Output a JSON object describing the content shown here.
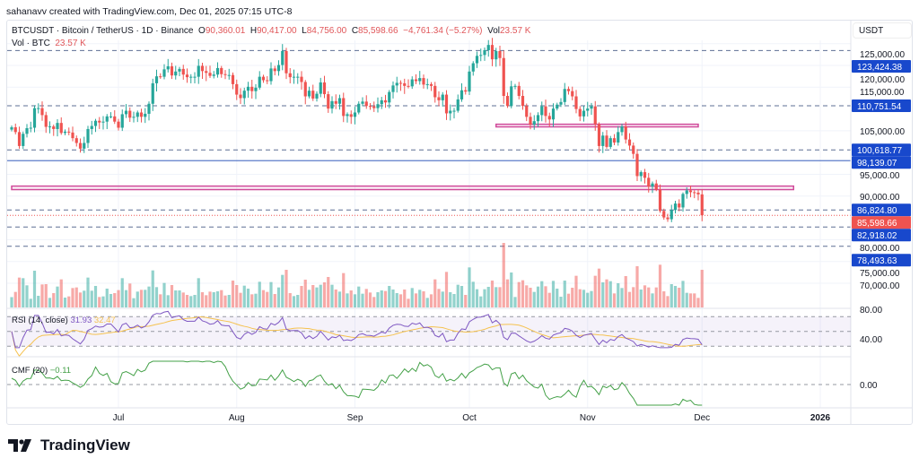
{
  "credit": "sahanavv created with TradingView.com, Dec 01, 2025 07:15 UTC-8",
  "header": {
    "symbol": "BTCUSDT · Bitcoin / TetherUS · 1D · Binance",
    "o_label": "O",
    "o": "90,360.01",
    "h_label": "H",
    "h": "90,417.00",
    "l_label": "L",
    "l": "84,756.00",
    "c_label": "C",
    "c": "85,598.66",
    "change": "−4,761.34 (−5.27%)",
    "vol_label": "Vol",
    "vol": "23.57 K",
    "vol_series_label": "Vol · BTC",
    "vol_series_value": "23.57 K"
  },
  "price_unit": "USDT",
  "logo_text": "TradingView",
  "colors": {
    "up": "#26a69a",
    "down": "#ef5350",
    "level": "#1848cc",
    "rsi": "#7e57c2",
    "rsi_ma": "#f5c24f",
    "cmf": "#43a047",
    "zone": "#d04a9a"
  },
  "chart_data": {
    "type": "candlestick",
    "start_date": "2025-06-03",
    "close_k": [
      105.8,
      104.7,
      101.5,
      104.3,
      105.6,
      105.7,
      110.2,
      110.2,
      108.6,
      105.9,
      106.0,
      105.4,
      106.8,
      104.5,
      104.8,
      104.6,
      103.3,
      102.2,
      100.9,
      102.2,
      105.4,
      106.1,
      107.3,
      106.9,
      107.1,
      108.3,
      108.3,
      107.1,
      105.7,
      108.8,
      109.6,
      108.0,
      108.2,
      109.2,
      108.2,
      108.9,
      111.2,
      115.9,
      117.5,
      117.4,
      119.1,
      119.8,
      117.7,
      118.6,
      119.2,
      117.9,
      117.3,
      117.4,
      117.4,
      119.9,
      118.7,
      118.3,
      117.6,
      117.9,
      119.4,
      118.0,
      117.8,
      117.8,
      115.7,
      113.3,
      112.5,
      114.2,
      115.1,
      114.1,
      114.9,
      117.4,
      116.6,
      116.4,
      119.3,
      118.7,
      120.1,
      123.3,
      118.2,
      117.3,
      117.4,
      117.4,
      116.2,
      112.9,
      114.2,
      112.4,
      113.5,
      116.1,
      113.4,
      110.1,
      111.8,
      111.2,
      112.5,
      108.4,
      108.8,
      108.2,
      109.2,
      111.2,
      111.7,
      110.7,
      110.6,
      110.2,
      111.1,
      112.0,
      111.5,
      113.9,
      115.4,
      116.0,
      115.9,
      115.3,
      115.2,
      116.8,
      116.4,
      117.1,
      115.6,
      115.7,
      115.3,
      112.7,
      112.0,
      113.3,
      109.0,
      109.6,
      109.6,
      112.2,
      114.3,
      114.0,
      118.6,
      120.5,
      122.2,
      122.4,
      123.5,
      124.7,
      121.4,
      123.3,
      121.7,
      113.0,
      110.7,
      115.2,
      115.3,
      113.0,
      110.7,
      108.2,
      106.4,
      107.2,
      108.6,
      110.6,
      108.4,
      107.6,
      110.1,
      111.0,
      111.6,
      114.6,
      114.1,
      112.9,
      110.0,
      108.3,
      109.6,
      110.1,
      110.6,
      106.5,
      101.5,
      103.9,
      101.3,
      103.3,
      102.3,
      104.7,
      106.0,
      103.0,
      101.6,
      99.7,
      94.6,
      95.5,
      94.2,
      92.2,
      92.9,
      91.5,
      86.6,
      85.1,
      84.7,
      86.8,
      88.3,
      87.4,
      90.5,
      91.3,
      90.9,
      90.8,
      90.4,
      85.6
    ],
    "price_ticks": [
      "125,000.00",
      "120,000.00",
      "115,000.00",
      "105,000.00",
      "95,000.00",
      "90,000.00",
      "80,000.00",
      "75,000.00",
      "70,000.00"
    ],
    "price_tick_values": [
      125000,
      120000,
      115000,
      105000,
      95000,
      90000,
      80000,
      75000,
      70000
    ],
    "levels": [
      {
        "label": "123,424.38",
        "value": 123424.38,
        "style": "dashed"
      },
      {
        "label": "110,751.54",
        "value": 110751.54,
        "style": "dashed"
      },
      {
        "label": "100,618.77",
        "value": 100618.77,
        "style": "dashed"
      },
      {
        "label": "98,139.07",
        "value": 98139.07,
        "style": "solid"
      },
      {
        "label": "86,824.80",
        "value": 86824.8,
        "style": "dashed"
      },
      {
        "label": "82,918.02",
        "value": 82918.02,
        "style": "dashed"
      },
      {
        "label": "78,493.63",
        "value": 78493.63,
        "style": "dashed"
      }
    ],
    "last_price": {
      "label": "85,598.66",
      "value": 85598.66
    },
    "zones": [
      {
        "from": 105900,
        "to": 106500,
        "start": "2025-10-08",
        "end": "2025-11-30"
      },
      {
        "from": 91500,
        "to": 92300,
        "start": "2025-06-03",
        "end": "2025-12-25"
      }
    ],
    "x_ticks": [
      "Jul",
      "Aug",
      "Sep",
      "Oct",
      "Nov",
      "Dec",
      "2026"
    ],
    "x_tick_dates": [
      "2025-07-01",
      "2025-08-01",
      "2025-09-01",
      "2025-10-01",
      "2025-11-01",
      "2025-12-01",
      "2026-01-01"
    ],
    "rsi": {
      "label": "RSI (14, close)",
      "value": "31.93",
      "ma_value": "32.47",
      "ticks": [
        "80.00",
        "40.00"
      ],
      "bands": [
        70,
        30
      ]
    },
    "cmf": {
      "label": "CMF (20)",
      "value": "−0.11",
      "ticks": [
        "0.00"
      ]
    }
  }
}
